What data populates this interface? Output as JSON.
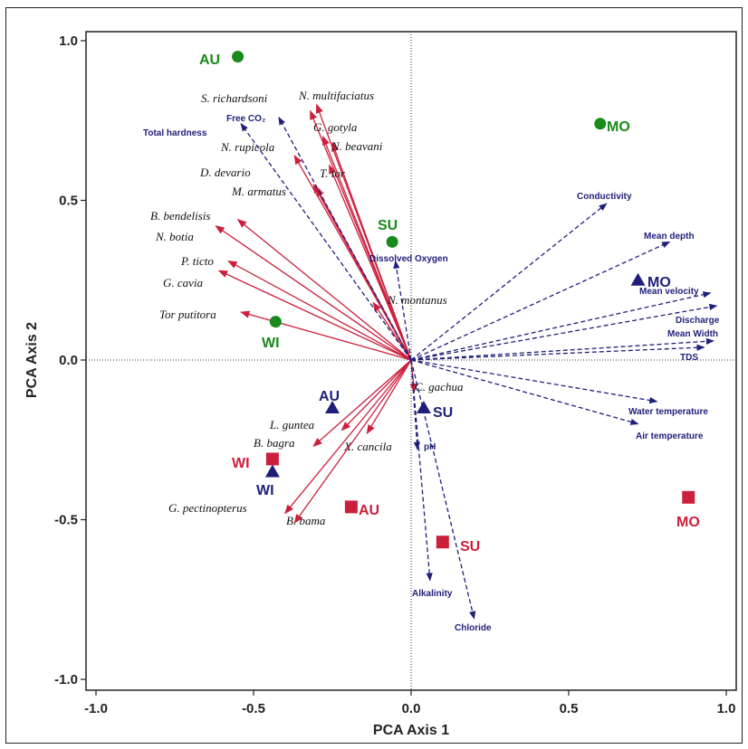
{
  "chart_data": {
    "type": "scatter",
    "xlabel": "PCA Axis 1",
    "ylabel": "PCA Axis 2",
    "xlim": [
      -1.0,
      1.0
    ],
    "ylim": [
      -1.0,
      1.0
    ],
    "xticks": [
      "-1.0",
      "-0.5",
      "0.0",
      "0.5",
      "1.0"
    ],
    "yticks": [
      "1.0",
      "0.5",
      "0.0",
      "-0.5",
      "-1.0"
    ],
    "reference_lines": "dotted at x=0 and y=0",
    "colors": {
      "species": "#cc1f3c",
      "environment": "#1f1f7a",
      "sites_circle": "#1a8a1a",
      "sites_triangle": "#1f1f7a",
      "sites_square": "#cc1f3c"
    },
    "species_vectors": [
      {
        "label": "S. richardsoni",
        "x": -0.3,
        "y": 0.8
      },
      {
        "label": "N. multifaciatus",
        "x": -0.32,
        "y": 0.78
      },
      {
        "label": "G. gotyla",
        "x": -0.28,
        "y": 0.7
      },
      {
        "label": "N. beavani",
        "x": -0.25,
        "y": 0.68
      },
      {
        "label": "N. rupicola",
        "x": -0.37,
        "y": 0.64
      },
      {
        "label": "T. tor",
        "x": -0.26,
        "y": 0.61
      },
      {
        "label": "D. devario",
        "x": -0.31,
        "y": 0.55
      },
      {
        "label": "M. armatus",
        "x": -0.3,
        "y": 0.54
      },
      {
        "label": "B. bendelisis",
        "x": -0.55,
        "y": 0.44
      },
      {
        "label": "N. botia",
        "x": -0.62,
        "y": 0.42
      },
      {
        "label": "P. ticto",
        "x": -0.58,
        "y": 0.31
      },
      {
        "label": "G. cavia",
        "x": -0.61,
        "y": 0.28
      },
      {
        "label": "Tor putitora",
        "x": -0.54,
        "y": 0.15
      },
      {
        "label": "N. montanus",
        "x": -0.12,
        "y": 0.18
      },
      {
        "label": "C. gachua",
        "x": 0.01,
        "y": -0.1
      },
      {
        "label": "L. guntea",
        "x": -0.22,
        "y": -0.22
      },
      {
        "label": "B. bagra",
        "x": -0.31,
        "y": -0.27
      },
      {
        "label": "X. cancila",
        "x": -0.14,
        "y": -0.23
      },
      {
        "label": "G. pectinopterus",
        "x": -0.4,
        "y": -0.48
      },
      {
        "label": "B. bama",
        "x": -0.37,
        "y": -0.51
      }
    ],
    "environment_vectors": [
      {
        "label": "Total hardness",
        "x": -0.54,
        "y": 0.74
      },
      {
        "label": "Free CO₂",
        "x": -0.42,
        "y": 0.76
      },
      {
        "label": "Dissolved Oxygen",
        "x": -0.05,
        "y": 0.31
      },
      {
        "label": "Conductivity",
        "x": 0.62,
        "y": 0.49
      },
      {
        "label": "Mean depth",
        "x": 0.82,
        "y": 0.37
      },
      {
        "label": "Mean velocity",
        "x": 0.95,
        "y": 0.21
      },
      {
        "label": "Discharge",
        "x": 0.97,
        "y": 0.17
      },
      {
        "label": "Mean Width",
        "x": 0.96,
        "y": 0.06
      },
      {
        "label": "TDS",
        "x": 0.93,
        "y": 0.04
      },
      {
        "label": "Water temperature",
        "x": 0.78,
        "y": -0.13
      },
      {
        "label": "Air temperature",
        "x": 0.72,
        "y": -0.2
      },
      {
        "label": "pH",
        "x": 0.02,
        "y": -0.28
      },
      {
        "label": "Alkalinity",
        "x": 0.06,
        "y": -0.69
      },
      {
        "label": "Chloride",
        "x": 0.2,
        "y": -0.81
      }
    ],
    "sites": [
      {
        "label": "AU",
        "marker": "circle",
        "x": -0.55,
        "y": 0.95
      },
      {
        "label": "MO",
        "marker": "circle",
        "x": 0.6,
        "y": 0.74
      },
      {
        "label": "SU",
        "marker": "circle",
        "x": -0.06,
        "y": 0.37
      },
      {
        "label": "WI",
        "marker": "circle",
        "x": -0.43,
        "y": 0.12
      },
      {
        "label": "MO",
        "marker": "triangle",
        "x": 0.72,
        "y": 0.25
      },
      {
        "label": "AU",
        "marker": "triangle",
        "x": -0.25,
        "y": -0.15
      },
      {
        "label": "SU",
        "marker": "triangle",
        "x": 0.04,
        "y": -0.15
      },
      {
        "label": "WI",
        "marker": "triangle",
        "x": -0.44,
        "y": -0.35
      },
      {
        "label": "WI",
        "marker": "square",
        "x": -0.44,
        "y": -0.31
      },
      {
        "label": "AU",
        "marker": "square",
        "x": -0.19,
        "y": -0.46
      },
      {
        "label": "SU",
        "marker": "square",
        "x": 0.1,
        "y": -0.57
      },
      {
        "label": "MO",
        "marker": "square",
        "x": 0.88,
        "y": -0.43
      }
    ]
  }
}
